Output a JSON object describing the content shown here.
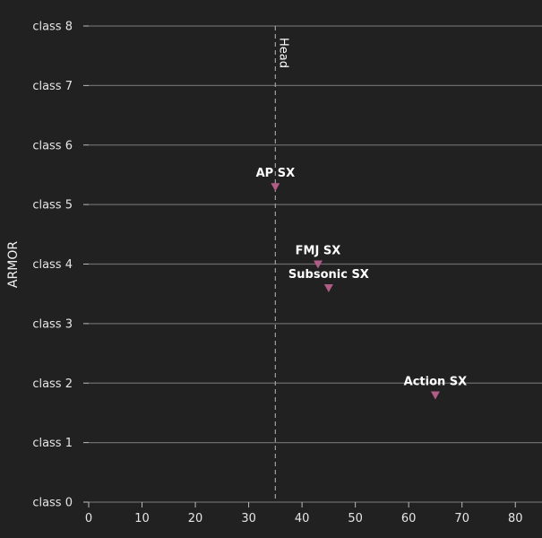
{
  "chart_data": {
    "type": "scatter",
    "ylabel": "ARMOR",
    "xlim": [
      0,
      85
    ],
    "ylim": [
      0,
      8
    ],
    "x_ticks": [
      "0",
      "10",
      "20",
      "30",
      "40",
      "50",
      "60",
      "70",
      "80"
    ],
    "y_ticks": [
      "class 0",
      "class 1",
      "class 2",
      "class 3",
      "class 4",
      "class 5",
      "class 6",
      "class 7",
      "class 8"
    ],
    "grid": "horizontal",
    "reference_line": {
      "x": 35,
      "label": "Head"
    },
    "points": [
      {
        "label": "AP SX",
        "x": 35,
        "y": 5.3
      },
      {
        "label": "FMJ SX",
        "x": 43,
        "y": 4.0
      },
      {
        "label": "Subsonic SX",
        "x": 45,
        "y": 3.6
      },
      {
        "label": "Action SX",
        "x": 65,
        "y": 1.8
      }
    ],
    "colors": {
      "background": "#212121",
      "grid": "#6b6b6b",
      "marker": "#b05c86",
      "reference": "#a0a0a0"
    }
  }
}
